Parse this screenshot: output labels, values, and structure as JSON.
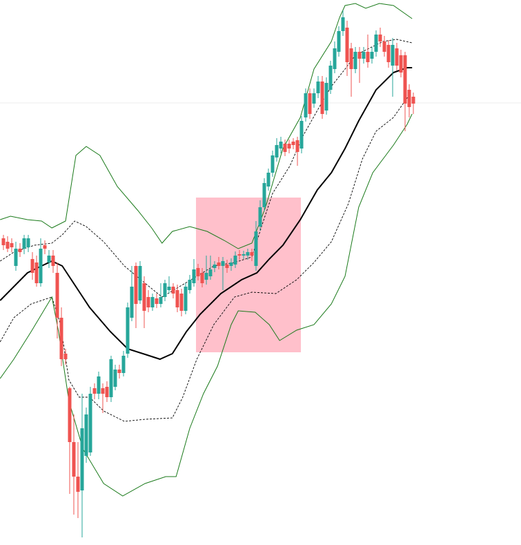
{
  "chart_data": {
    "type": "candlestick",
    "xlim": [
      -0.83,
      125
    ],
    "ylim": [
      0,
      789
    ],
    "up_color": "#26a69a",
    "down_color": "#ef5350",
    "open": [
      444,
      439,
      437,
      404,
      429,
      429,
      431,
      414,
      409,
      379,
      434,
      409,
      419,
      394,
      329,
      277,
      227,
      149,
      99,
      79,
      129,
      134,
      227,
      219,
      227,
      229,
      214,
      229,
      254,
      249,
      277,
      329,
      404,
      354,
      379,
      359,
      344,
      357,
      349,
      359,
      369,
      374,
      369,
      364,
      339,
      369,
      379,
      401,
      394,
      384,
      389,
      401,
      409,
      404,
      406,
      404,
      406,
      421,
      419,
      419,
      424,
      404,
      461,
      489,
      519,
      539,
      561,
      574,
      581,
      581,
      584,
      586,
      574,
      619,
      654,
      639,
      654,
      671,
      629,
      659,
      689,
      714,
      744,
      749,
      719,
      689,
      714,
      704,
      714,
      704,
      714,
      739,
      729,
      724,
      694,
      719,
      709,
      709,
      659,
      649
    ],
    "close": [
      434,
      429,
      431,
      429,
      424,
      444,
      444,
      394,
      379,
      429,
      429,
      419,
      404,
      329,
      269,
      269,
      149,
      99,
      77,
      169,
      189,
      219,
      219,
      244,
      219,
      214,
      269,
      254,
      249,
      274,
      344,
      374,
      349,
      404,
      339,
      344,
      359,
      349,
      359,
      379,
      374,
      364,
      344,
      339,
      374,
      384,
      399,
      389,
      379,
      394,
      399,
      406,
      404,
      411,
      401,
      409,
      419,
      419,
      421,
      424,
      419,
      454,
      489,
      524,
      539,
      564,
      579,
      584,
      569,
      574,
      579,
      569,
      614,
      654,
      624,
      654,
      671,
      624,
      669,
      694,
      719,
      744,
      764,
      699,
      689,
      714,
      704,
      714,
      699,
      714,
      739,
      729,
      714,
      699,
      724,
      694,
      684,
      639,
      634,
      639
    ],
    "high": [
      449,
      447,
      444,
      439,
      437,
      449,
      449,
      424,
      419,
      444,
      441,
      427,
      427,
      409,
      344,
      284,
      229,
      189,
      149,
      219,
      199,
      229,
      234,
      251,
      234,
      237,
      274,
      261,
      261,
      281,
      351,
      404,
      409,
      411,
      389,
      369,
      364,
      364,
      379,
      384,
      389,
      379,
      377,
      371,
      379,
      391,
      414,
      407,
      401,
      419,
      419,
      411,
      417,
      417,
      413,
      415,
      425,
      427,
      426,
      429,
      429,
      469,
      499,
      531,
      545,
      571,
      589,
      591,
      587,
      587,
      589,
      591,
      621,
      661,
      661,
      661,
      679,
      679,
      677,
      701,
      729,
      751,
      774,
      759,
      727,
      721,
      721,
      721,
      739,
      721,
      745,
      749,
      737,
      731,
      734,
      727,
      717,
      714,
      667,
      655
    ],
    "low": [
      427,
      424,
      424,
      397,
      417,
      421,
      424,
      384,
      374,
      374,
      421,
      401,
      394,
      299,
      259,
      261,
      74,
      44,
      39,
      11,
      119,
      129,
      211,
      211,
      191,
      207,
      207,
      224,
      241,
      244,
      271,
      324,
      314,
      349,
      314,
      337,
      339,
      343,
      344,
      353,
      364,
      357,
      337,
      331,
      334,
      364,
      374,
      383,
      373,
      377,
      384,
      395,
      399,
      369,
      394,
      397,
      401,
      413,
      414,
      413,
      411,
      397,
      455,
      483,
      513,
      533,
      555,
      567,
      563,
      567,
      573,
      549,
      567,
      613,
      617,
      633,
      647,
      617,
      623,
      653,
      683,
      707,
      737,
      679,
      649,
      683,
      669,
      697,
      691,
      697,
      707,
      721,
      707,
      691,
      649,
      687,
      677,
      599,
      619,
      624
    ],
    "series": [
      {
        "color": "#000000",
        "style": "solid",
        "x": [
          -0.8,
          2.5,
          5.8,
          9.2,
          11.7,
          14.2,
          17.5,
          20.8,
          25.8,
          30,
          34.2,
          37.8,
          40.8,
          44.2,
          47.5,
          52.5,
          57.5,
          61.2,
          64.2,
          67.5,
          71.7,
          75.8,
          79.2,
          82.5,
          85.8,
          90,
          94.2,
          97.5,
          98.7
        ],
        "values": [
          354,
          374,
          394,
          404,
          411,
          404,
          374,
          344,
          309,
          284,
          276,
          269,
          277,
          309,
          334,
          364,
          384,
          394,
          414,
          434,
          471,
          514,
          539,
          574,
          614,
          659,
          684,
          691,
          691
        ]
      },
      {
        "color": "#000000",
        "style": "dashed",
        "x": [
          -0.8,
          2.5,
          7.5,
          11.7,
          14.2,
          17.2,
          20,
          24.2,
          29.2,
          34.2,
          38.3,
          42.5,
          46.7,
          50.8,
          55.8,
          60,
          62.5,
          65,
          69.2,
          72.5,
          75.8,
          79.2,
          82.5,
          85,
          88.3,
          91.7,
          95,
          98.7
        ],
        "values": [
          411,
          424,
          434,
          437,
          449,
          469,
          461,
          439,
          404,
          379,
          359,
          374,
          389,
          404,
          409,
          417,
          464,
          509,
          549,
          594,
          629,
          664,
          689,
          709,
          719,
          729,
          732,
          727
        ]
      },
      {
        "color": "#000000",
        "style": "dashed",
        "x": [
          -0.8,
          2.5,
          6.7,
          11.7,
          13.8,
          15.8,
          18.3,
          20.8,
          24.2,
          29.2,
          34.2,
          40.8,
          43.3,
          46.7,
          50.8,
          55.8,
          60,
          65.8,
          70.8,
          75,
          79.2,
          83.3,
          86.7,
          90,
          94.2,
          98.3
        ],
        "values": [
          294,
          329,
          349,
          359,
          319,
          239,
          214,
          214,
          194,
          179,
          182,
          184,
          214,
          269,
          319,
          359,
          366,
          364,
          384,
          409,
          439,
          494,
          559,
          599,
          619,
          654
        ]
      },
      {
        "color": "#1a7a1a",
        "style": "thin",
        "x": [
          -0.8,
          1.7,
          5.8,
          9.2,
          11.7,
          15,
          17.5,
          20,
          23.3,
          27.5,
          32.5,
          35.8,
          38.3,
          40.8,
          45,
          49.2,
          53.3,
          56.7,
          60,
          63.3,
          67.5,
          71.7,
          75,
          79.2,
          81.2,
          82.5,
          85,
          87.5,
          90.8,
          94.2,
          98.7
        ],
        "values": [
          471,
          476,
          471,
          469,
          459,
          469,
          564,
          577,
          564,
          519,
          484,
          459,
          437,
          454,
          461,
          454,
          441,
          429,
          437,
          489,
          574,
          619,
          689,
          729,
          764,
          781,
          784,
          777,
          784,
          781,
          762
        ]
      },
      {
        "color": "#1a7a1a",
        "style": "thin",
        "x": [
          -0.8,
          2.5,
          6.7,
          11.7,
          13.3,
          15.8,
          19.2,
          24.2,
          28.8,
          34.2,
          39.2,
          41.7,
          45,
          48.3,
          51.7,
          55,
          56.7,
          60.8,
          64.2,
          66.7,
          70.8,
          75,
          79.2,
          82.5,
          85.8,
          89.2,
          94.2,
          97.5,
          98.7
        ],
        "values": [
          241,
          269,
          309,
          359,
          309,
          209,
          139,
          89,
          71,
          89,
          99,
          99,
          169,
          219,
          259,
          319,
          339,
          337,
          319,
          296,
          311,
          319,
          349,
          389,
          489,
          539,
          579,
          609,
          624
        ]
      }
    ]
  }
}
